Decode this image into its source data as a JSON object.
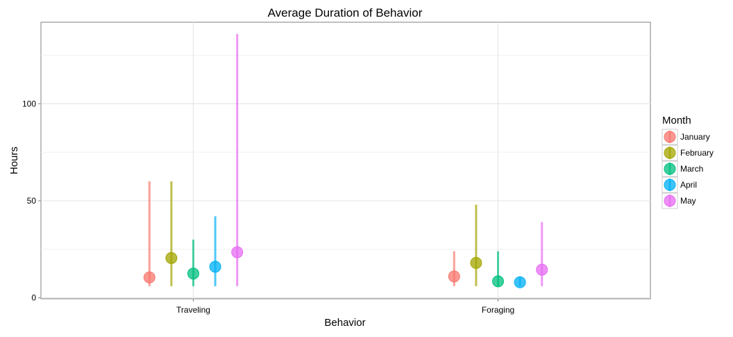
{
  "chart_data": {
    "type": "scatter",
    "title": "Average Duration of Behavior",
    "xlabel": "Behavior",
    "ylabel": "Hours",
    "categories": [
      "Traveling",
      "Foraging"
    ],
    "ylim": [
      -0.5,
      142
    ],
    "yticks": [
      0,
      50,
      100
    ],
    "grid": true,
    "legend_title": "Month",
    "legend_position": "right",
    "series": [
      {
        "name": "January",
        "color": "#F8766D",
        "points": [
          {
            "x": "Traveling",
            "y": 10.5,
            "low": 6,
            "high": 60
          },
          {
            "x": "Foraging",
            "y": 11,
            "low": 6,
            "high": 24
          }
        ]
      },
      {
        "name": "February",
        "color": "#A3A500",
        "points": [
          {
            "x": "Traveling",
            "y": 20.5,
            "low": 6,
            "high": 60
          },
          {
            "x": "Foraging",
            "y": 18,
            "low": 6,
            "high": 48
          }
        ]
      },
      {
        "name": "March",
        "color": "#00BF7D",
        "points": [
          {
            "x": "Traveling",
            "y": 12.5,
            "low": 6,
            "high": 30
          },
          {
            "x": "Foraging",
            "y": 8.5,
            "low": 6,
            "high": 24
          }
        ]
      },
      {
        "name": "April",
        "color": "#00B0F6",
        "points": [
          {
            "x": "Traveling",
            "y": 16,
            "low": 6,
            "high": 42
          },
          {
            "x": "Foraging",
            "y": 8,
            "low": 6,
            "high": 11
          }
        ]
      },
      {
        "name": "May",
        "color": "#E76BF3",
        "points": [
          {
            "x": "Traveling",
            "y": 23.5,
            "low": 6,
            "high": 136
          },
          {
            "x": "Foraging",
            "y": 14.5,
            "low": 6,
            "high": 39
          }
        ]
      }
    ]
  }
}
